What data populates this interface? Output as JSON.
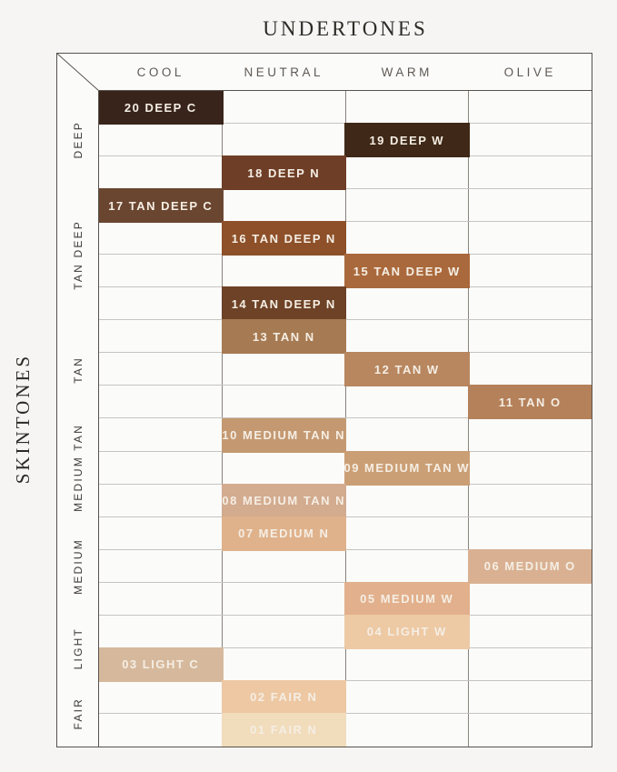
{
  "title": "UNDERTONES",
  "side_label": "SKINTONES",
  "palette": {
    "page_background": "#f6f5f3",
    "table_background": "#fbfbfa",
    "outer_border": "#57524c",
    "row_line": "#c6c4c0",
    "column_line": "#87837d",
    "header_text": "#5f5a53",
    "group_text": "#3c3935",
    "title_text": "#2e2b27",
    "shade_text": "#f5eee4"
  },
  "chart_data": {
    "type": "table",
    "title": "UNDERTONES",
    "xlabel": "UNDERTONES",
    "ylabel": "SKINTONES",
    "columns": [
      "COOL",
      "NEUTRAL",
      "WARM",
      "OLIVE"
    ],
    "row_groups": [
      {
        "label": "DEEP",
        "rows": 3
      },
      {
        "label": "TAN DEEP",
        "rows": 4
      },
      {
        "label": "TAN",
        "rows": 3
      },
      {
        "label": "MEDIUM TAN",
        "rows": 3
      },
      {
        "label": "MEDIUM",
        "rows": 3
      },
      {
        "label": "LIGHT",
        "rows": 2
      },
      {
        "label": "FAIR",
        "rows": 2
      }
    ],
    "rows": [
      {
        "shade": "20 DEEP C",
        "undertone": "COOL",
        "skintone_group": "DEEP",
        "color": "#38241a"
      },
      {
        "shade": "19 DEEP W",
        "undertone": "WARM",
        "skintone_group": "DEEP",
        "color": "#3f2817"
      },
      {
        "shade": "18 DEEP N",
        "undertone": "NEUTRAL",
        "skintone_group": "DEEP",
        "color": "#6e3e26"
      },
      {
        "shade": "17 TAN DEEP C",
        "undertone": "COOL",
        "skintone_group": "TAN DEEP",
        "color": "#6a4630"
      },
      {
        "shade": "16 TAN DEEP N",
        "undertone": "NEUTRAL",
        "skintone_group": "TAN DEEP",
        "color": "#8d5029"
      },
      {
        "shade": "15 TAN DEEP W",
        "undertone": "WARM",
        "skintone_group": "TAN DEEP",
        "color": "#aa693c"
      },
      {
        "shade": "14 TAN DEEP N",
        "undertone": "NEUTRAL",
        "skintone_group": "TAN DEEP",
        "color": "#6d4226"
      },
      {
        "shade": "13 TAN N",
        "undertone": "NEUTRAL",
        "skintone_group": "TAN",
        "color": "#a67a52"
      },
      {
        "shade": "12 TAN W",
        "undertone": "WARM",
        "skintone_group": "TAN",
        "color": "#b8875f"
      },
      {
        "shade": "11 TAN O",
        "undertone": "OLIVE",
        "skintone_group": "TAN",
        "color": "#b4815a"
      },
      {
        "shade": "10 MEDIUM TAN N",
        "undertone": "NEUTRAL",
        "skintone_group": "MEDIUM TAN",
        "color": "#c49972"
      },
      {
        "shade": "09 MEDIUM TAN W",
        "undertone": "WARM",
        "skintone_group": "MEDIUM TAN",
        "color": "#cb9f75"
      },
      {
        "shade": "08 MEDIUM TAN N",
        "undertone": "NEUTRAL",
        "skintone_group": "MEDIUM TAN",
        "color": "#d3ab8f"
      },
      {
        "shade": "07 MEDIUM N",
        "undertone": "NEUTRAL",
        "skintone_group": "MEDIUM",
        "color": "#dfb28c"
      },
      {
        "shade": "06 MEDIUM O",
        "undertone": "OLIVE",
        "skintone_group": "MEDIUM",
        "color": "#d9b192"
      },
      {
        "shade": "05 MEDIUM W",
        "undertone": "WARM",
        "skintone_group": "MEDIUM",
        "color": "#e2b08c"
      },
      {
        "shade": "04 LIGHT W",
        "undertone": "WARM",
        "skintone_group": "LIGHT",
        "color": "#edc9a4"
      },
      {
        "shade": "03 LIGHT C",
        "undertone": "COOL",
        "skintone_group": "LIGHT",
        "color": "#d6b99c"
      },
      {
        "shade": "02 FAIR N",
        "undertone": "NEUTRAL",
        "skintone_group": "FAIR",
        "color": "#edc8a3"
      },
      {
        "shade": "01 FAIR N",
        "undertone": "NEUTRAL",
        "skintone_group": "FAIR",
        "color": "#f1dcbc"
      }
    ]
  }
}
